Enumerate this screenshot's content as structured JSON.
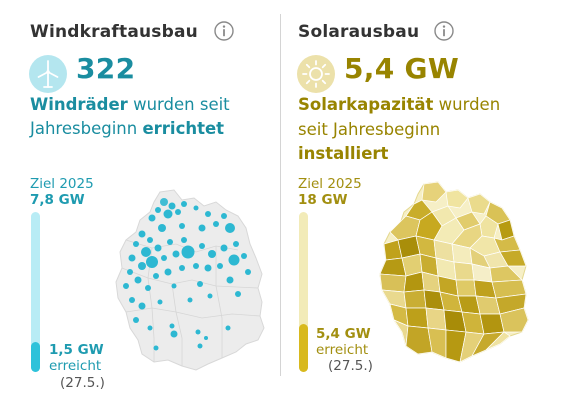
{
  "wind": {
    "title": "Windkraftausbau",
    "hero_value": "322",
    "desc_part1": "Windräder",
    "desc_part2": " wurden seit",
    "desc_part3": "Jahresbeginn ",
    "desc_part4": "errichtet",
    "goal_label": "Ziel 2025",
    "goal_value": "7,8 GW",
    "reached_value": "1,5 GW",
    "reached_label": "erreicht",
    "reached_date": "(27.5.)",
    "progress_fraction": 0.19,
    "icon": "wind-turbine-icon",
    "colors": {
      "accent": "#1a8da0",
      "bar_track": "#b8ecf5",
      "bar_fill": "#2ec2da",
      "map_dot": "#2db8d2"
    }
  },
  "solar": {
    "title": "Solarausbau",
    "hero_value": "5,4 GW",
    "desc_part1": "Solarkapazität",
    "desc_part2": " wurden",
    "desc_part3": "seit Jahresbeginn",
    "desc_part4": "installiert",
    "goal_label": "Ziel 2025",
    "goal_value": "18 GW",
    "reached_value": "5,4 GW",
    "reached_label": "erreicht",
    "reached_date": "(27.5.)",
    "progress_fraction": 0.3,
    "icon": "sun-icon",
    "colors": {
      "accent": "#988400",
      "bar_track": "#f2ebb8",
      "bar_fill": "#d8b91e",
      "map_dark": "#b59a0c",
      "map_light": "#f5eec4"
    }
  },
  "icons": {
    "info": "info-icon"
  }
}
